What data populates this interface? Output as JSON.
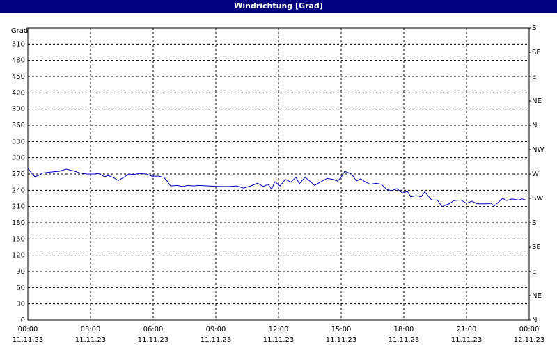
{
  "title": "Windrichtung [Grad]",
  "chart_data": {
    "type": "line",
    "y_label": "Grad",
    "color": "#0000c0",
    "grid": true,
    "xlim": [
      0,
      24
    ],
    "ylim": [
      0,
      540
    ],
    "y2lim": [
      0,
      540
    ],
    "xticks": [
      {
        "value": 0,
        "label": "00:00 11.11.23"
      },
      {
        "value": 3,
        "label": "03:00 11.11.23"
      },
      {
        "value": 6,
        "label": "06:00 11.11.23"
      },
      {
        "value": 9,
        "label": "09:00 11.11.23"
      },
      {
        "value": 12,
        "label": "12:00 11.11.23"
      },
      {
        "value": 15,
        "label": "15:00 11.11.23"
      },
      {
        "value": 18,
        "label": "18:00 11.11.23"
      },
      {
        "value": 21,
        "label": "21:00 11.11.23"
      },
      {
        "value": 24,
        "label": "00:00 12.11.23"
      }
    ],
    "yticks": [
      0,
      30,
      60,
      90,
      120,
      150,
      180,
      210,
      240,
      270,
      300,
      330,
      360,
      390,
      420,
      450,
      480,
      510
    ],
    "y2ticks": [
      {
        "value": 0,
        "label": "N"
      },
      {
        "value": 45,
        "label": "NE"
      },
      {
        "value": 90,
        "label": "E"
      },
      {
        "value": 135,
        "label": "SE"
      },
      {
        "value": 180,
        "label": "S"
      },
      {
        "value": 225,
        "label": "SW"
      },
      {
        "value": 270,
        "label": "W"
      },
      {
        "value": 315,
        "label": "NW"
      },
      {
        "value": 360,
        "label": "N"
      },
      {
        "value": 405,
        "label": "NE"
      },
      {
        "value": 450,
        "label": "E"
      },
      {
        "value": 495,
        "label": "SE"
      },
      {
        "value": 540,
        "label": "S"
      }
    ],
    "x": [
      0,
      0.17,
      0.33,
      0.5,
      0.73,
      1.17,
      1.5,
      1.83,
      2.17,
      2.5,
      2.83,
      3.17,
      3.4,
      3.67,
      3.83,
      4.07,
      4.33,
      4.6,
      4.83,
      5.07,
      5.33,
      5.67,
      5.93,
      6.27,
      6.5,
      6.67,
      6.83,
      7.17,
      7.4,
      7.67,
      7.93,
      8.17,
      8.67,
      9.17,
      9.67,
      10,
      10.33,
      10.67,
      11,
      11.27,
      11.5,
      11.67,
      11.83,
      12.07,
      12.33,
      12.6,
      12.83,
      13,
      13.27,
      13.5,
      13.73,
      14,
      14.33,
      14.6,
      14.83,
      15,
      15.17,
      15.5,
      15.73,
      15.93,
      16.17,
      16.4,
      16.67,
      16.93,
      17.17,
      17.4,
      17.67,
      17.93,
      18.17,
      18.33,
      18.6,
      18.83,
      19,
      19.33,
      19.6,
      19.83,
      20.17,
      20.4,
      20.73,
      21,
      21.27,
      21.5,
      22,
      22.17,
      22.33,
      22.5,
      22.73,
      22.93,
      23.17,
      23.5,
      23.67,
      23.83
    ],
    "values": [
      281,
      272,
      265,
      267,
      272,
      274,
      275,
      279,
      276,
      272,
      270,
      270,
      271,
      265,
      267,
      264,
      258,
      264,
      270,
      269,
      271,
      270,
      266,
      266,
      264,
      257,
      248,
      249,
      247,
      249,
      248,
      249,
      248,
      247,
      247,
      248,
      244,
      248,
      253,
      247,
      251,
      242,
      256,
      248,
      260,
      255,
      264,
      252,
      264,
      257,
      249,
      255,
      262,
      260,
      257,
      264,
      275,
      270,
      257,
      261,
      255,
      251,
      253,
      251,
      242,
      239,
      243,
      235,
      238,
      228,
      230,
      228,
      237,
      222,
      222,
      210,
      215,
      221,
      222,
      216,
      220,
      215,
      215,
      216,
      211,
      217,
      225,
      221,
      224,
      222,
      224,
      222
    ]
  }
}
